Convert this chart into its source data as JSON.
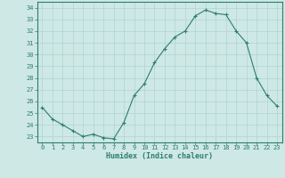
{
  "x": [
    0,
    1,
    2,
    3,
    4,
    5,
    6,
    7,
    8,
    9,
    10,
    11,
    12,
    13,
    14,
    15,
    16,
    17,
    18,
    19,
    20,
    21,
    22,
    23
  ],
  "y": [
    25.5,
    24.5,
    24.0,
    23.5,
    23.0,
    23.2,
    22.9,
    22.8,
    24.2,
    26.5,
    27.5,
    29.3,
    30.5,
    31.5,
    32.0,
    33.3,
    33.8,
    33.5,
    33.4,
    32.0,
    31.0,
    28.0,
    26.5,
    25.6
  ],
  "line_color": "#2e7d6e",
  "marker": "+",
  "bg_color": "#cde8e5",
  "grid_color": "#b0d4d0",
  "axis_color": "#2e7d6e",
  "xlabel": "Humidex (Indice chaleur)",
  "ylim": [
    22.5,
    34.5
  ],
  "yticks": [
    23,
    24,
    25,
    26,
    27,
    28,
    29,
    30,
    31,
    32,
    33,
    34
  ],
  "xticks": [
    0,
    1,
    2,
    3,
    4,
    5,
    6,
    7,
    8,
    9,
    10,
    11,
    12,
    13,
    14,
    15,
    16,
    17,
    18,
    19,
    20,
    21,
    22,
    23
  ],
  "font_color": "#2e7d6e",
  "tick_fontsize": 5.0,
  "xlabel_fontsize": 6.0
}
